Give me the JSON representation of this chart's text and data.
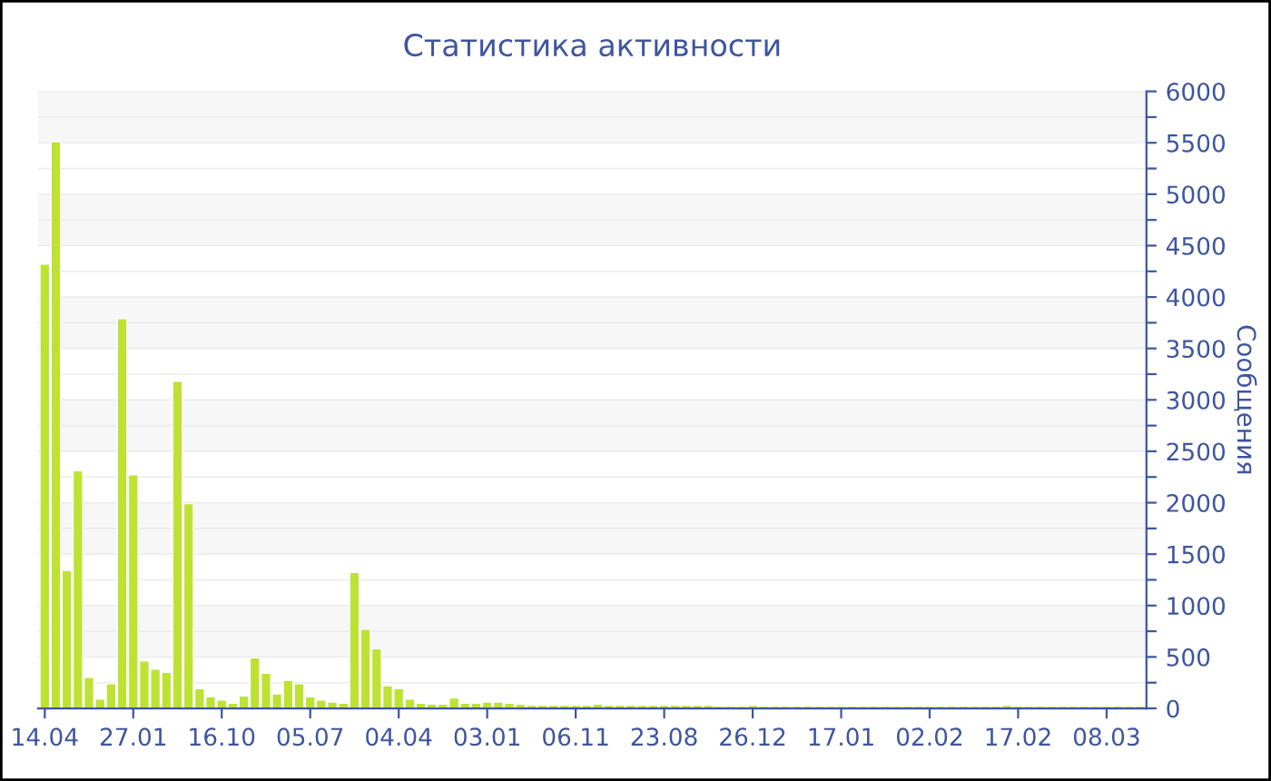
{
  "chart_data": {
    "type": "bar",
    "title": "Статистика активности",
    "ylabel": "Сообщения",
    "categories": [
      "14.04",
      null,
      null,
      null,
      null,
      null,
      null,
      null,
      "27.01",
      null,
      null,
      null,
      null,
      null,
      null,
      null,
      "16.10",
      null,
      null,
      null,
      null,
      null,
      null,
      null,
      "05.07",
      null,
      null,
      null,
      null,
      null,
      null,
      null,
      "04.04",
      null,
      null,
      null,
      null,
      null,
      null,
      null,
      "03.01",
      null,
      null,
      null,
      null,
      null,
      null,
      null,
      "06.11",
      null,
      null,
      null,
      null,
      null,
      null,
      null,
      "23.08",
      null,
      null,
      null,
      null,
      null,
      null,
      null,
      "26.12",
      null,
      null,
      null,
      null,
      null,
      null,
      null,
      "17.01",
      null,
      null,
      null,
      null,
      null,
      null,
      null,
      "02.02",
      null,
      null,
      null,
      null,
      null,
      null,
      null,
      "17.02",
      null,
      null,
      null,
      null,
      null,
      null,
      null,
      "08.03",
      null,
      null,
      null
    ],
    "values": [
      4320,
      5510,
      1340,
      2310,
      300,
      90,
      240,
      3790,
      2270,
      460,
      380,
      350,
      3180,
      1990,
      190,
      110,
      80,
      50,
      120,
      490,
      340,
      140,
      270,
      240,
      110,
      80,
      60,
      50,
      1320,
      770,
      580,
      220,
      190,
      90,
      50,
      40,
      40,
      100,
      50,
      50,
      60,
      60,
      50,
      40,
      30,
      30,
      30,
      30,
      30,
      30,
      40,
      30,
      30,
      30,
      30,
      30,
      30,
      30,
      30,
      30,
      30,
      20,
      20,
      20,
      30,
      20,
      20,
      20,
      20,
      20,
      20,
      20,
      20,
      20,
      20,
      20,
      20,
      20,
      20,
      20,
      20,
      20,
      20,
      20,
      20,
      20,
      20,
      30,
      20,
      20,
      20,
      20,
      20,
      20,
      20,
      20,
      20,
      20,
      20,
      20
    ],
    "color": "#bde234",
    "ylim": [
      0,
      6000
    ],
    "yticks": [
      0,
      {
        "value": 250,
        "label": null
      },
      500,
      {
        "value": 750,
        "label": null
      },
      1000,
      {
        "value": 1250,
        "label": null
      },
      1500,
      {
        "value": 1750,
        "label": null
      },
      2000,
      {
        "value": 2250,
        "label": null
      },
      2500,
      {
        "value": 2750,
        "label": null
      },
      3000,
      {
        "value": 3250,
        "label": null
      },
      3500,
      {
        "value": 3750,
        "label": null
      },
      4000,
      {
        "value": 4250,
        "label": null
      },
      4500,
      {
        "value": 4750,
        "label": null
      },
      5000,
      {
        "value": 5250,
        "label": null
      },
      5500,
      {
        "value": 5750,
        "label": null
      },
      6000
    ],
    "grid": "y",
    "legend": false
  }
}
